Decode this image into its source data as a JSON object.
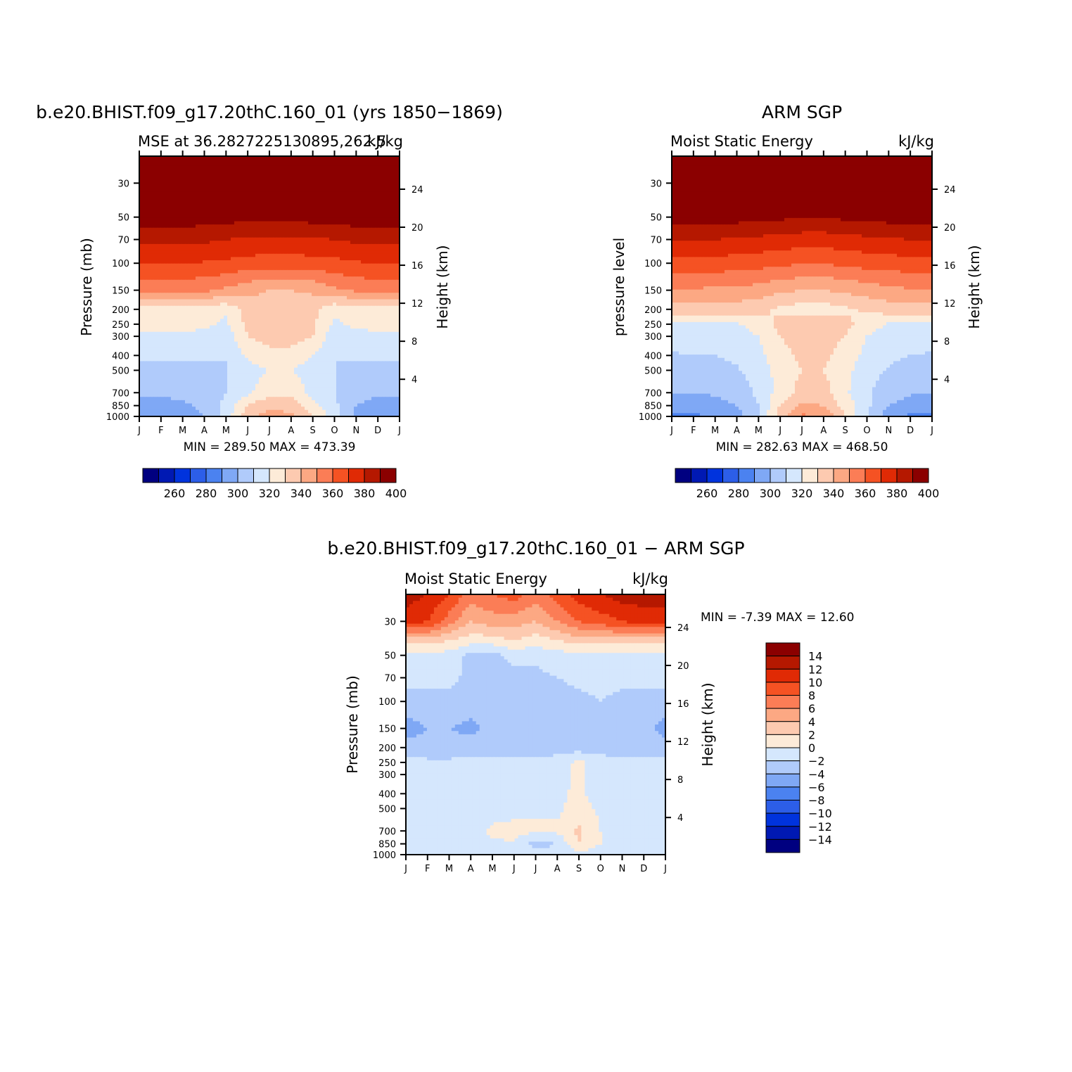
{
  "palettes": {
    "abs": [
      "#000080",
      "#0019b3",
      "#0033dd",
      "#2c5ee8",
      "#4b82f0",
      "#7fa8f5",
      "#b0cbfb",
      "#d5e7fd",
      "#fdebd8",
      "#fdcab0",
      "#fca883",
      "#fb7d56",
      "#f55223",
      "#e02a05",
      "#b51800",
      "#8b0000"
    ],
    "diff": [
      "#000080",
      "#0019b3",
      "#0033dd",
      "#2c5ee8",
      "#4b82f0",
      "#7fa8f5",
      "#b0cbfb",
      "#d5e7fd",
      "#fdebd8",
      "#fdcab0",
      "#fca883",
      "#fb7d56",
      "#f55223",
      "#e02a05",
      "#b51800",
      "#8b0000"
    ]
  },
  "panels": [
    {
      "id": "model",
      "main_title": "b.e20.BHIST.f09_g17.20thC.160_01 (yrs 1850−1869)",
      "left_title": "MSE at 36.2827225130895,262.5",
      "right_title": "kJ/kg",
      "ylabel": "Pressure (mb)",
      "ylabel_right": "Height (km)",
      "min_max": "MIN =  289.50 MAX =  473.39",
      "pressure_ticks": [
        "30",
        "50",
        "70",
        "100",
        "150",
        "200",
        "250",
        "300",
        "400",
        "500",
        "700",
        "850",
        "1000"
      ],
      "height_ticks": [
        "24",
        "20",
        "16",
        "12",
        "8",
        "4"
      ],
      "month_ticks": [
        "J",
        "F",
        "M",
        "A",
        "M",
        "J",
        "J",
        "A",
        "S",
        "O",
        "N",
        "D",
        "J"
      ],
      "colorbar": {
        "orientation": "horizontal",
        "labels": [
          "260",
          "280",
          "300",
          "320",
          "340",
          "360",
          "380",
          "400"
        ]
      },
      "chart_data": {
        "type": "heatmap",
        "x": [
          "J",
          "F",
          "M",
          "A",
          "M",
          "J",
          "J",
          "A",
          "S",
          "O",
          "N",
          "D",
          "J"
        ],
        "y_pressure_mb": [
          30,
          50,
          70,
          100,
          150,
          200,
          250,
          300,
          400,
          500,
          700,
          850,
          1000
        ],
        "levels": [
          250,
          260,
          270,
          280,
          290,
          300,
          310,
          320,
          330,
          340,
          350,
          360,
          370,
          380,
          390,
          400
        ],
        "z": [
          [
            410,
            410,
            410,
            410,
            410,
            410,
            410,
            410,
            410,
            410,
            410,
            410,
            410
          ],
          [
            396,
            396,
            396,
            395,
            394,
            393,
            392,
            393,
            394,
            395,
            396,
            396,
            396
          ],
          [
            383,
            383,
            382,
            382,
            380,
            379,
            378,
            378,
            379,
            380,
            382,
            383,
            383
          ],
          [
            371,
            371,
            371,
            369,
            368,
            366,
            365,
            365,
            366,
            367,
            369,
            371,
            371
          ],
          [
            352,
            352,
            352,
            352,
            348,
            343,
            340,
            340,
            342,
            348,
            352,
            352,
            352
          ],
          [
            325,
            325,
            325,
            325,
            322,
            334,
            335,
            335,
            333,
            323,
            325,
            325,
            325
          ],
          [
            323,
            323,
            323,
            322,
            318,
            333,
            335,
            335,
            332,
            318,
            322,
            323,
            323
          ],
          [
            318,
            318,
            318,
            317,
            314,
            330,
            335,
            335,
            330,
            314,
            317,
            318,
            318
          ],
          [
            312,
            312,
            313,
            312,
            310,
            322,
            326,
            326,
            320,
            310,
            312,
            312,
            312
          ],
          [
            305,
            305,
            306,
            307,
            310,
            316,
            320,
            320,
            315,
            310,
            307,
            305,
            305
          ],
          [
            302,
            302,
            303,
            305,
            310,
            318,
            327,
            327,
            317,
            311,
            304,
            302,
            302
          ],
          [
            296,
            296,
            298,
            302,
            313,
            330,
            338,
            336,
            324,
            312,
            300,
            296,
            296
          ],
          [
            292,
            292,
            295,
            300,
            315,
            335,
            345,
            342,
            330,
            315,
            298,
            292,
            292
          ]
        ]
      }
    },
    {
      "id": "obs",
      "main_title": "ARM SGP",
      "left_title": "Moist Static Energy",
      "right_title": "kJ/kg",
      "ylabel": "pressure level",
      "ylabel_right": "Height (km)",
      "min_max": "MIN =  282.63 MAX =  468.50",
      "pressure_ticks": [
        "30",
        "50",
        "70",
        "100",
        "150",
        "200",
        "250",
        "300",
        "400",
        "500",
        "700",
        "850",
        "1000"
      ],
      "height_ticks": [
        "24",
        "20",
        "16",
        "12",
        "8",
        "4"
      ],
      "month_ticks": [
        "J",
        "F",
        "M",
        "A",
        "M",
        "J",
        "J",
        "A",
        "S",
        "O",
        "N",
        "D",
        "J"
      ],
      "colorbar": {
        "orientation": "horizontal",
        "labels": [
          "260",
          "280",
          "300",
          "320",
          "340",
          "360",
          "380",
          "400"
        ]
      },
      "chart_data": {
        "type": "heatmap",
        "x": [
          "J",
          "F",
          "M",
          "A",
          "M",
          "J",
          "J",
          "A",
          "S",
          "O",
          "N",
          "D",
          "J"
        ],
        "y_pressure_mb": [
          30,
          50,
          70,
          100,
          150,
          200,
          250,
          300,
          400,
          500,
          700,
          850,
          1000
        ],
        "levels": [
          250,
          260,
          270,
          280,
          290,
          300,
          310,
          320,
          330,
          340,
          350,
          360,
          370,
          380,
          390,
          400
        ],
        "z": [
          [
            410,
            410,
            410,
            410,
            410,
            410,
            410,
            410,
            410,
            410,
            410,
            410,
            410
          ],
          [
            395,
            395,
            395,
            394,
            393,
            392,
            391,
            391,
            392,
            393,
            394,
            395,
            395
          ],
          [
            380,
            380,
            380,
            379,
            378,
            376,
            375,
            375,
            376,
            378,
            379,
            380,
            380
          ],
          [
            367,
            367,
            366,
            365,
            364,
            362,
            361,
            361,
            362,
            364,
            365,
            366,
            367
          ],
          [
            349,
            349,
            348,
            347,
            346,
            342,
            340,
            340,
            342,
            345,
            347,
            349,
            349
          ],
          [
            336,
            336,
            336,
            335,
            333,
            328,
            325,
            325,
            328,
            332,
            335,
            336,
            336
          ],
          [
            318,
            318,
            318,
            319,
            325,
            333,
            336,
            336,
            333,
            325,
            319,
            318,
            318
          ],
          [
            314,
            314,
            314,
            315,
            320,
            330,
            334,
            334,
            330,
            320,
            315,
            314,
            314
          ],
          [
            309,
            310,
            310,
            312,
            317,
            327,
            332,
            332,
            326,
            317,
            312,
            310,
            309
          ],
          [
            305,
            305,
            306,
            309,
            314,
            324,
            330,
            330,
            323,
            314,
            309,
            306,
            305
          ],
          [
            300,
            300,
            301,
            304,
            312,
            324,
            334,
            334,
            322,
            311,
            305,
            301,
            300
          ],
          [
            295,
            295,
            297,
            300,
            310,
            330,
            342,
            340,
            326,
            312,
            300,
            296,
            295
          ],
          [
            288,
            288,
            291,
            296,
            310,
            335,
            352,
            348,
            330,
            310,
            294,
            288,
            288
          ]
        ]
      }
    },
    {
      "id": "diff",
      "main_title": "b.e20.BHIST.f09_g17.20thC.160_01 − ARM SGP",
      "left_title": "Moist Static Energy",
      "right_title": "kJ/kg",
      "ylabel": "Pressure (mb)",
      "ylabel_right": "Height (km)",
      "min_max": "MIN =   -7.39 MAX =   12.60",
      "pressure_ticks": [
        "30",
        "50",
        "70",
        "100",
        "150",
        "200",
        "250",
        "300",
        "400",
        "500",
        "700",
        "850",
        "1000"
      ],
      "height_ticks": [
        "24",
        "20",
        "16",
        "12",
        "8",
        "4"
      ],
      "month_ticks": [
        "J",
        "F",
        "M",
        "A",
        "M",
        "J",
        "J",
        "A",
        "S",
        "O",
        "N",
        "D",
        "J"
      ],
      "colorbar": {
        "orientation": "vertical",
        "labels": [
          "14",
          "12",
          "10",
          "8",
          "6",
          "4",
          "2",
          "0",
          "−2",
          "−4",
          "−6",
          "−8",
          "−10",
          "−12",
          "−14"
        ]
      },
      "chart_data": {
        "type": "heatmap",
        "x": [
          "J",
          "F",
          "M",
          "A",
          "M",
          "J",
          "J",
          "A",
          "S",
          "O",
          "N",
          "D",
          "J"
        ],
        "y_pressure_mb": [
          20,
          30,
          40,
          50,
          70,
          100,
          150,
          200,
          250,
          300,
          400,
          500,
          700,
          850,
          1000
        ],
        "levels": [
          -16,
          -14,
          -12,
          -10,
          -8,
          -6,
          -4,
          -2,
          0,
          2,
          4,
          6,
          8,
          10,
          12,
          14
        ],
        "z": [
          [
            11,
            10,
            8,
            5,
            6,
            7,
            5,
            7,
            9,
            10,
            11,
            11,
            11
          ],
          [
            9,
            8,
            5,
            2,
            3,
            3,
            2,
            4,
            6,
            7,
            8,
            9,
            9
          ],
          [
            1,
            1,
            0,
            -1,
            -1,
            0,
            -1,
            0,
            1,
            1,
            1,
            1,
            1
          ],
          [
            -2.5,
            -2.5,
            -3,
            -4.5,
            -4.5,
            -3.5,
            -3.5,
            -3,
            -2.5,
            -2.5,
            -2.5,
            -2.5,
            -2.5
          ],
          [
            -3.5,
            -3.5,
            -3.5,
            -4.5,
            -4.5,
            -4.5,
            -4.5,
            -4,
            -3.5,
            -3.5,
            -3.5,
            -3.5,
            -3.5
          ],
          [
            -4.5,
            -4.5,
            -4.5,
            -5,
            -5,
            -5,
            -4.5,
            -5,
            -4.5,
            -4,
            -4.5,
            -4.5,
            -4.5
          ],
          [
            -7,
            -6,
            -6,
            -6.5,
            -5.5,
            -5,
            -5,
            -5,
            -5.5,
            -5.5,
            -5,
            -5,
            -7
          ],
          [
            -5,
            -5.5,
            -5.5,
            -5,
            -5,
            -5,
            -5,
            -5,
            -5,
            -5,
            -5,
            -5,
            -5
          ],
          [
            -3.5,
            -3.5,
            -3.5,
            -3.5,
            -3.5,
            -3.5,
            -3.5,
            -3,
            -1.5,
            -3,
            -3.5,
            -3.5,
            -3.5
          ],
          [
            -3.5,
            -3.5,
            -3.5,
            -3.5,
            -3.5,
            -3.5,
            -3.5,
            -3,
            -1.5,
            -3,
            -3.5,
            -3.5,
            -3.5
          ],
          [
            -3.5,
            -3.5,
            -3.5,
            -3.5,
            -3.5,
            -3,
            -3,
            -2.5,
            -1.5,
            -3,
            -3.5,
            -3.5,
            -3.5
          ],
          [
            -3.5,
            -3.5,
            -3.5,
            -3.5,
            -3,
            -2.5,
            -2.5,
            -2.5,
            -1,
            -2.5,
            -3.5,
            -3.5,
            -3.5
          ],
          [
            -3.5,
            -3.5,
            -3.5,
            -3,
            -1.5,
            -1.5,
            -1.5,
            -1.5,
            0.5,
            -2,
            -3,
            -3.5,
            -3.5
          ],
          [
            -3.5,
            -3.5,
            -3,
            -4,
            -2.5,
            -2,
            -5,
            -4,
            0,
            -2,
            -2,
            -3,
            -3.5
          ],
          [
            -3,
            -3,
            -3,
            -3,
            -3,
            -3,
            -3,
            -3,
            -3,
            -3,
            -3,
            -3,
            -3
          ]
        ]
      }
    }
  ]
}
